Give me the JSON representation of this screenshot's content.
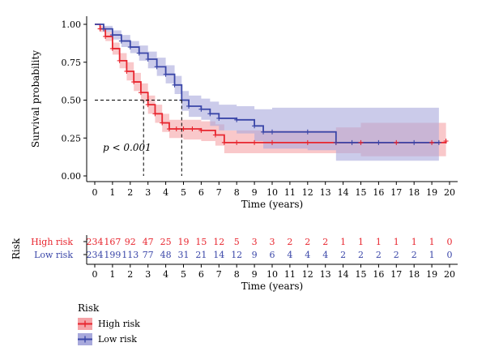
{
  "chart_data": [
    {
      "type": "line",
      "subtype": "kaplan-meier",
      "ylabel": "Survival probability",
      "xlabel": "Time (years)",
      "xlim": [
        0,
        20
      ],
      "ylim": [
        0,
        1
      ],
      "x_ticks": [
        0,
        1,
        2,
        3,
        4,
        5,
        6,
        7,
        8,
        9,
        10,
        11,
        12,
        13,
        14,
        15,
        16,
        17,
        18,
        19,
        20
      ],
      "y_ticks": [
        "0.00",
        "0.25",
        "0.50",
        "0.75",
        "1.00"
      ],
      "annotation": "p < 0.001",
      "median_reference_y": 0.5,
      "median_survival": {
        "High risk": 2.75,
        "Low risk": 4.9
      },
      "series": [
        {
          "name": "High risk",
          "color": "#e8262f",
          "band_color": "#f5a3a7",
          "x": [
            0,
            0.3,
            0.6,
            1.0,
            1.4,
            1.8,
            2.2,
            2.6,
            3.0,
            3.4,
            3.8,
            4.2,
            4.6,
            5.0,
            5.5,
            6.0,
            6.8,
            7.3,
            8.0,
            9.0,
            10.0,
            12.0,
            13.6,
            15.0,
            17.0,
            19.0,
            19.8
          ],
          "y": [
            1.0,
            0.97,
            0.92,
            0.84,
            0.76,
            0.69,
            0.62,
            0.55,
            0.47,
            0.41,
            0.35,
            0.31,
            0.31,
            0.31,
            0.31,
            0.3,
            0.27,
            0.22,
            0.22,
            0.22,
            0.22,
            0.22,
            0.22,
            0.22,
            0.22,
            0.22,
            0.23
          ],
          "lower": [
            1.0,
            0.95,
            0.89,
            0.8,
            0.71,
            0.63,
            0.56,
            0.49,
            0.41,
            0.35,
            0.29,
            0.25,
            0.25,
            0.24,
            0.24,
            0.23,
            0.2,
            0.15,
            0.15,
            0.15,
            0.15,
            0.15,
            0.15,
            0.13,
            0.13,
            0.13,
            0.13
          ],
          "upper": [
            1.0,
            0.99,
            0.95,
            0.88,
            0.81,
            0.75,
            0.68,
            0.61,
            0.53,
            0.47,
            0.41,
            0.37,
            0.37,
            0.37,
            0.37,
            0.36,
            0.34,
            0.3,
            0.3,
            0.3,
            0.3,
            0.3,
            0.32,
            0.35,
            0.35,
            0.35,
            0.35
          ]
        },
        {
          "name": "Low risk",
          "color": "#3a46a8",
          "band_color": "#a8a9dc",
          "x": [
            0,
            0.5,
            1.0,
            1.5,
            2.0,
            2.5,
            3.0,
            3.5,
            4.0,
            4.5,
            4.9,
            5.3,
            6.0,
            6.5,
            7.0,
            8.0,
            9.0,
            9.5,
            10.0,
            12.0,
            13.6,
            14.5,
            16.0,
            18.0,
            19.4
          ],
          "y": [
            1.0,
            0.97,
            0.93,
            0.89,
            0.85,
            0.81,
            0.77,
            0.72,
            0.67,
            0.6,
            0.5,
            0.46,
            0.44,
            0.41,
            0.38,
            0.37,
            0.33,
            0.29,
            0.29,
            0.29,
            0.22,
            0.22,
            0.22,
            0.22,
            0.22
          ],
          "lower": [
            1.0,
            0.95,
            0.9,
            0.85,
            0.81,
            0.76,
            0.71,
            0.66,
            0.61,
            0.54,
            0.43,
            0.39,
            0.37,
            0.33,
            0.3,
            0.28,
            0.23,
            0.18,
            0.18,
            0.17,
            0.1,
            0.1,
            0.1,
            0.1,
            0.1
          ],
          "upper": [
            1.0,
            0.99,
            0.96,
            0.93,
            0.89,
            0.86,
            0.82,
            0.78,
            0.73,
            0.66,
            0.56,
            0.53,
            0.51,
            0.49,
            0.47,
            0.46,
            0.44,
            0.44,
            0.45,
            0.45,
            0.45,
            0.45,
            0.45,
            0.45,
            0.45
          ]
        }
      ]
    },
    {
      "type": "table",
      "title": "Risk",
      "xlabel": "Time (years)",
      "x_ticks": [
        0,
        1,
        2,
        3,
        4,
        5,
        6,
        7,
        8,
        9,
        10,
        11,
        12,
        13,
        14,
        15,
        16,
        17,
        18,
        19,
        20
      ],
      "rows": [
        {
          "name": "High risk",
          "color": "#e8262f",
          "values": [
            234,
            167,
            92,
            47,
            25,
            19,
            15,
            12,
            5,
            3,
            3,
            2,
            2,
            2,
            1,
            1,
            1,
            1,
            1,
            1,
            0
          ]
        },
        {
          "name": "Low risk",
          "color": "#3a46a8",
          "values": [
            234,
            199,
            113,
            77,
            48,
            31,
            21,
            14,
            12,
            9,
            6,
            4,
            4,
            4,
            2,
            2,
            2,
            2,
            2,
            1,
            0
          ]
        }
      ]
    }
  ],
  "legend": {
    "title": "Risk",
    "items": [
      {
        "label": "High risk",
        "color": "#e8262f",
        "band_color": "#f5a3a7"
      },
      {
        "label": "Low risk",
        "color": "#3a46a8",
        "band_color": "#a8a9dc"
      }
    ]
  }
}
